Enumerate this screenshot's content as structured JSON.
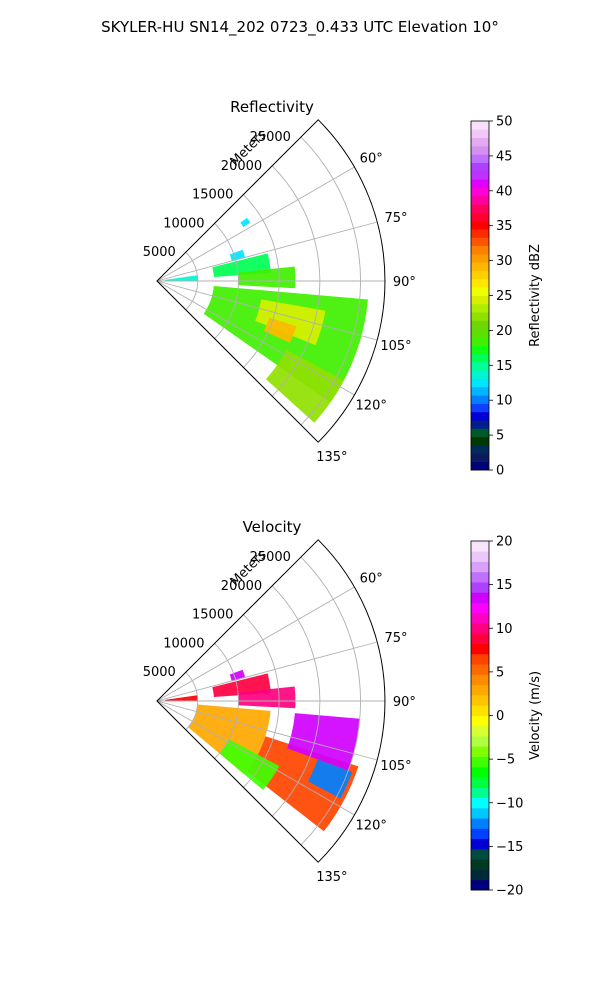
{
  "figure": {
    "title": "SKYLER-HU  SN14_202  0723_0.433 UTC Elevation 10°"
  },
  "chart_data": [
    {
      "type": "heatmap",
      "projection": "polar-sector",
      "title": "Reflectivity",
      "radial_axis_label": "Meters",
      "radial_ticks": [
        5000,
        10000,
        15000,
        20000,
        25000
      ],
      "radial_tick_labels": [
        "5000",
        "10000",
        "15000",
        "20000",
        "25000"
      ],
      "radial_range": [
        0,
        28000
      ],
      "azimuth_range_deg": [
        45,
        135
      ],
      "azimuth_ticks_deg": [
        60,
        75,
        90,
        105,
        120,
        135
      ],
      "azimuth_tick_labels": [
        "60°",
        "75°",
        "90°",
        "105°",
        "120°",
        "135°"
      ],
      "grid": true,
      "colorbar": {
        "label": "Reflectivity dBZ",
        "range": [
          0,
          50
        ],
        "ticks": [
          0,
          5,
          10,
          15,
          20,
          25,
          30,
          35,
          40,
          45,
          50
        ],
        "tick_labels": [
          "0",
          "5",
          "10",
          "15",
          "20",
          "25",
          "30",
          "35",
          "40",
          "45",
          "50"
        ]
      },
      "regions": [
        {
          "az": [
            70,
            75
          ],
          "r": [
            9500,
            11200
          ],
          "value": 13
        },
        {
          "az": [
            55,
            58
          ],
          "r": [
            12500,
            13500
          ],
          "value": 12
        },
        {
          "az": [
            76,
            86
          ],
          "r": [
            7000,
            14000
          ],
          "value": 16
        },
        {
          "az": [
            82,
            90
          ],
          "r": [
            1000,
            5000
          ],
          "value": 14
        },
        {
          "az": [
            84,
            93
          ],
          "r": [
            10000,
            17000
          ],
          "value": 18
        },
        {
          "az": [
            95,
            125
          ],
          "r": [
            7000,
            26000
          ],
          "value": 19
        },
        {
          "az": [
            100,
            112
          ],
          "r": [
            13000,
            21000
          ],
          "value": 24
        },
        {
          "az": [
            108,
            115
          ],
          "r": [
            14500,
            18000
          ],
          "value": 29
        },
        {
          "az": [
            118,
            132
          ],
          "r": [
            18000,
            26000
          ],
          "value": 22
        }
      ]
    },
    {
      "type": "heatmap",
      "projection": "polar-sector",
      "title": "Velocity",
      "radial_axis_label": "Meters",
      "radial_ticks": [
        5000,
        10000,
        15000,
        20000,
        25000
      ],
      "radial_tick_labels": [
        "5000",
        "10000",
        "15000",
        "20000",
        "25000"
      ],
      "radial_range": [
        0,
        28000
      ],
      "azimuth_range_deg": [
        45,
        135
      ],
      "azimuth_ticks_deg": [
        60,
        75,
        90,
        105,
        120,
        135
      ],
      "azimuth_tick_labels": [
        "60°",
        "75°",
        "90°",
        "105°",
        "120°",
        "135°"
      ],
      "grid": true,
      "colorbar": {
        "label": "Velocity (m/s)",
        "range": [
          -20,
          20
        ],
        "ticks": [
          -20,
          -15,
          -10,
          -5,
          0,
          5,
          10,
          15,
          20
        ],
        "tick_labels": [
          "−20",
          "−15",
          "−10",
          "−5",
          "0",
          "5",
          "10",
          "15",
          "20"
        ]
      },
      "regions": [
        {
          "az": [
            70,
            75
          ],
          "r": [
            9500,
            11200
          ],
          "value": 13
        },
        {
          "az": [
            76,
            86
          ],
          "r": [
            7000,
            14000
          ],
          "value": 9
        },
        {
          "az": [
            82,
            90
          ],
          "r": [
            1000,
            5000
          ],
          "value": 8
        },
        {
          "az": [
            84,
            93
          ],
          "r": [
            10000,
            17000
          ],
          "value": 10
        },
        {
          "az": [
            95,
            130
          ],
          "r": [
            5000,
            14000
          ],
          "value": 3
        },
        {
          "az": [
            108,
            128
          ],
          "r": [
            14000,
            26000
          ],
          "value": 7
        },
        {
          "az": [
            95,
            110
          ],
          "r": [
            17000,
            25000
          ],
          "value": 13
        },
        {
          "az": [
            110,
            118
          ],
          "r": [
            21000,
            25500
          ],
          "value": -12
        },
        {
          "az": [
            118,
            130
          ],
          "r": [
            10000,
            17000
          ],
          "value": -5
        }
      ]
    }
  ]
}
